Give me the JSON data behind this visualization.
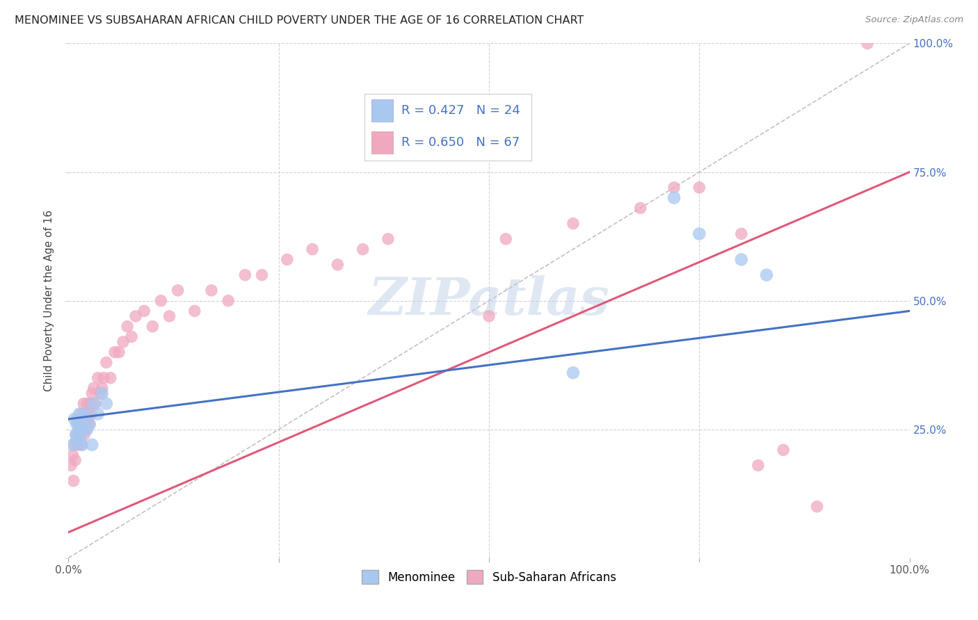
{
  "title": "MENOMINEE VS SUBSAHARAN AFRICAN CHILD POVERTY UNDER THE AGE OF 16 CORRELATION CHART",
  "source": "Source: ZipAtlas.com",
  "ylabel": "Child Poverty Under the Age of 16",
  "legend_labels": [
    "Menominee",
    "Sub-Saharan Africans"
  ],
  "menominee_R": 0.427,
  "menominee_N": 24,
  "subsaharan_R": 0.65,
  "subsaharan_N": 67,
  "menominee_color": "#a8c8f0",
  "subsaharan_color": "#f0a8c0",
  "menominee_line_color": "#4472c4",
  "subsaharan_line_color": "#e05878",
  "diagonal_color": "#c0c0c8",
  "watermark": "ZIPatlas",
  "background_color": "#ffffff",
  "grid_color": "#d0d0e0",
  "xlim": [
    0,
    1
  ],
  "ylim": [
    0,
    1
  ],
  "blue_line_x": [
    0,
    1
  ],
  "blue_line_y": [
    0.27,
    0.48
  ],
  "pink_line_x": [
    0,
    1
  ],
  "pink_line_y": [
    0.05,
    0.75
  ],
  "menominee_x": [
    0.005,
    0.007,
    0.009,
    0.01,
    0.01,
    0.012,
    0.013,
    0.014,
    0.015,
    0.016,
    0.018,
    0.02,
    0.022,
    0.025,
    0.028,
    0.03,
    0.035,
    0.04,
    0.045,
    0.72,
    0.75,
    0.8,
    0.83,
    0.6
  ],
  "menominee_y": [
    0.22,
    0.27,
    0.24,
    0.23,
    0.26,
    0.25,
    0.28,
    0.23,
    0.25,
    0.22,
    0.27,
    0.28,
    0.25,
    0.26,
    0.22,
    0.3,
    0.28,
    0.32,
    0.3,
    0.7,
    0.63,
    0.58,
    0.55,
    0.36
  ],
  "subsaharan_x": [
    0.003,
    0.005,
    0.006,
    0.007,
    0.008,
    0.009,
    0.01,
    0.01,
    0.011,
    0.012,
    0.013,
    0.014,
    0.015,
    0.015,
    0.016,
    0.017,
    0.018,
    0.019,
    0.02,
    0.021,
    0.022,
    0.023,
    0.024,
    0.025,
    0.026,
    0.027,
    0.028,
    0.03,
    0.032,
    0.035,
    0.038,
    0.04,
    0.042,
    0.045,
    0.05,
    0.055,
    0.06,
    0.065,
    0.07,
    0.075,
    0.08,
    0.09,
    0.1,
    0.11,
    0.12,
    0.13,
    0.15,
    0.17,
    0.19,
    0.21,
    0.23,
    0.26,
    0.29,
    0.32,
    0.35,
    0.38,
    0.5,
    0.52,
    0.6,
    0.68,
    0.72,
    0.75,
    0.8,
    0.82,
    0.85,
    0.89,
    0.95
  ],
  "subsaharan_y": [
    0.18,
    0.2,
    0.15,
    0.22,
    0.19,
    0.24,
    0.27,
    0.23,
    0.22,
    0.26,
    0.24,
    0.25,
    0.28,
    0.22,
    0.27,
    0.25,
    0.3,
    0.24,
    0.28,
    0.25,
    0.3,
    0.27,
    0.28,
    0.26,
    0.3,
    0.28,
    0.32,
    0.33,
    0.3,
    0.35,
    0.32,
    0.33,
    0.35,
    0.38,
    0.35,
    0.4,
    0.4,
    0.42,
    0.45,
    0.43,
    0.47,
    0.48,
    0.45,
    0.5,
    0.47,
    0.52,
    0.48,
    0.52,
    0.5,
    0.55,
    0.55,
    0.58,
    0.6,
    0.57,
    0.6,
    0.62,
    0.47,
    0.62,
    0.65,
    0.68,
    0.72,
    0.72,
    0.63,
    0.18,
    0.21,
    0.1,
    1.0
  ]
}
